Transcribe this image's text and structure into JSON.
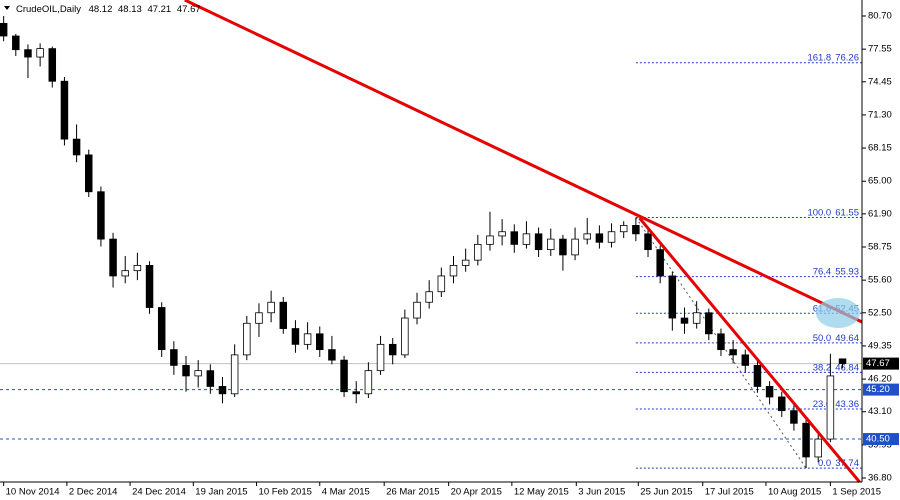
{
  "chart_data": {
    "type": "candlestick",
    "title": "CrudeOIL,Daily",
    "bull_color": "#ffffff",
    "bear_color": "#000000",
    "candles": [
      [
        80.0,
        80.7,
        78.3,
        78.8
      ],
      [
        78.8,
        79.0,
        76.9,
        77.5
      ],
      [
        77.5,
        78.0,
        74.8,
        76.8
      ],
      [
        76.8,
        78.1,
        75.9,
        77.6
      ],
      [
        77.6,
        77.8,
        73.9,
        74.5
      ],
      [
        74.5,
        74.9,
        68.4,
        69.0
      ],
      [
        69.0,
        70.4,
        66.8,
        67.5
      ],
      [
        67.5,
        68.0,
        63.5,
        64.0
      ],
      [
        64.0,
        64.5,
        58.8,
        59.5
      ],
      [
        59.5,
        60.1,
        54.9,
        56.0
      ],
      [
        56.0,
        57.9,
        55.3,
        56.5
      ],
      [
        56.5,
        58.2,
        55.6,
        57.0
      ],
      [
        57.0,
        57.4,
        52.4,
        53.0
      ],
      [
        53.0,
        53.5,
        48.3,
        49.0
      ],
      [
        49.0,
        49.8,
        46.6,
        47.5
      ],
      [
        47.5,
        48.4,
        45.0,
        46.5
      ],
      [
        46.5,
        48.0,
        45.4,
        47.0
      ],
      [
        47.0,
        47.6,
        44.8,
        45.5
      ],
      [
        45.5,
        46.4,
        43.9,
        44.8
      ],
      [
        44.8,
        49.5,
        44.5,
        48.5
      ],
      [
        48.5,
        52.2,
        48.0,
        51.5
      ],
      [
        51.5,
        53.4,
        50.2,
        52.5
      ],
      [
        52.5,
        54.6,
        51.6,
        53.5
      ],
      [
        53.5,
        54.0,
        50.5,
        51.0
      ],
      [
        51.0,
        51.8,
        48.7,
        49.5
      ],
      [
        49.5,
        51.6,
        49.0,
        50.5
      ],
      [
        50.5,
        51.2,
        48.3,
        49.0
      ],
      [
        49.0,
        50.3,
        47.6,
        48.0
      ],
      [
        48.0,
        48.4,
        44.5,
        45.0
      ],
      [
        45.0,
        46.0,
        43.9,
        44.8
      ],
      [
        44.8,
        47.8,
        44.4,
        47.0
      ],
      [
        47.0,
        50.3,
        46.6,
        49.5
      ],
      [
        49.5,
        50.1,
        47.6,
        48.5
      ],
      [
        48.5,
        52.8,
        48.2,
        52.0
      ],
      [
        52.0,
        54.4,
        51.4,
        53.5
      ],
      [
        53.5,
        55.6,
        52.9,
        54.5
      ],
      [
        54.5,
        56.8,
        54.0,
        56.0
      ],
      [
        56.0,
        57.9,
        55.3,
        57.0
      ],
      [
        57.0,
        58.6,
        56.4,
        57.5
      ],
      [
        57.5,
        59.9,
        57.0,
        59.0
      ],
      [
        59.0,
        62.1,
        58.4,
        59.8
      ],
      [
        59.8,
        61.4,
        58.9,
        60.2
      ],
      [
        60.2,
        60.9,
        58.2,
        59.0
      ],
      [
        59.0,
        61.2,
        58.6,
        60.0
      ],
      [
        60.0,
        60.6,
        57.8,
        58.5
      ],
      [
        58.5,
        60.5,
        57.9,
        59.5
      ],
      [
        59.5,
        59.9,
        56.5,
        58.0
      ],
      [
        58.0,
        60.6,
        57.5,
        59.5
      ],
      [
        59.5,
        61.5,
        59.0,
        60.0
      ],
      [
        60.0,
        60.8,
        58.6,
        59.2
      ],
      [
        59.2,
        61.0,
        58.7,
        60.2
      ],
      [
        60.2,
        61.2,
        59.6,
        60.8
      ],
      [
        60.8,
        61.55,
        59.3,
        60.0
      ],
      [
        60.0,
        60.4,
        57.8,
        58.5
      ],
      [
        58.5,
        58.9,
        55.3,
        56.0
      ],
      [
        56.0,
        56.4,
        50.8,
        52.0
      ],
      [
        52.0,
        53.0,
        50.5,
        51.5
      ],
      [
        51.5,
        53.6,
        51.0,
        52.5
      ],
      [
        52.5,
        52.9,
        49.9,
        50.5
      ],
      [
        50.5,
        51.0,
        48.4,
        49.0
      ],
      [
        49.0,
        49.9,
        47.7,
        48.5
      ],
      [
        48.5,
        49.0,
        46.8,
        47.5
      ],
      [
        47.5,
        47.9,
        44.9,
        45.5
      ],
      [
        45.5,
        46.0,
        43.8,
        44.5
      ],
      [
        44.5,
        45.0,
        42.6,
        43.2
      ],
      [
        43.2,
        43.7,
        41.3,
        42.0
      ],
      [
        42.0,
        42.4,
        37.74,
        38.8
      ],
      [
        38.8,
        41.0,
        38.3,
        40.5
      ],
      [
        40.5,
        48.6,
        40.2,
        46.5
      ],
      [
        48.12,
        48.13,
        47.21,
        47.67
      ]
    ],
    "xlim": [
      -0.3,
      70.6
    ],
    "xticks": [
      {
        "value": 0,
        "label": "10 Nov 2014"
      },
      {
        "value": 5.2,
        "label": "2 Dec 2014"
      },
      {
        "value": 10.4,
        "label": "24 Dec 2014"
      },
      {
        "value": 15.6,
        "label": "19 Jan 2015"
      },
      {
        "value": 20.8,
        "label": "10 Feb 2015"
      },
      {
        "value": 26,
        "label": "4 Mar 2015"
      },
      {
        "value": 31.3,
        "label": "26 Mar 2015"
      },
      {
        "value": 36.6,
        "label": "20 Apr 2015"
      },
      {
        "value": 41.8,
        "label": "12 May 2015"
      },
      {
        "value": 47.1,
        "label": "3 Jun 2015"
      },
      {
        "value": 52.2,
        "label": "25 Jun 2015"
      },
      {
        "value": 57.5,
        "label": "17 Jul 2015"
      },
      {
        "value": 62.7,
        "label": "10 Aug 2015"
      },
      {
        "value": 68,
        "label": "1 Sep 2015"
      }
    ],
    "ylim": [
      36.42,
      82.22
    ],
    "yticks": [
      {
        "value": 80.7,
        "label": "80.70"
      },
      77.55,
      74.45,
      {
        "value": 71.3,
        "label": "71.30"
      },
      68.15,
      {
        "value": 65,
        "label": "65.00"
      },
      {
        "value": 61.9,
        "label": "61.90"
      },
      58.75,
      {
        "value": 55.6,
        "label": "55.60"
      },
      {
        "value": 52.5,
        "label": "52.50"
      },
      49.35,
      {
        "value": 46.2,
        "label": "46.20"
      },
      {
        "value": 43.1,
        "label": "43.10"
      },
      39.95,
      {
        "value": 36.8,
        "label": "36.80"
      }
    ],
    "levels": [
      {
        "value": 45.2,
        "label": "45.20",
        "color": "#2050c8"
      },
      {
        "value": 40.5,
        "label": "40.50",
        "color": "#2050c8"
      }
    ],
    "fibonacci": {
      "color": "#1e3cc8",
      "anchors": [
        52,
        66
      ],
      "levels": [
        {
          "level": 161.8,
          "price": 76.26
        },
        {
          "level": {
            "value": 100,
            "label": "100.0"
          },
          "price": 61.55
        },
        {
          "level": 76.4,
          "price": 55.93
        },
        {
          "level": 61.8,
          "price": 52.45
        },
        {
          "level": {
            "value": 50,
            "label": "50.0"
          },
          "price": 49.64
        },
        {
          "level": 38.2,
          "price": 46.84
        },
        {
          "level": 23.6,
          "price": 43.36
        },
        {
          "level": {
            "value": 0,
            "label": "0.0"
          },
          "price": 37.74
        }
      ]
    },
    "trendlines": [
      {
        "color": "#e60000",
        "x": [
          14.9,
          70.6
        ],
        "y": [
          82.22,
          51.62
        ]
      },
      {
        "color": "#e60000",
        "x": [
          52.3,
          70.4
        ],
        "y": [
          61.5,
          36.42
        ]
      }
    ]
  }
}
